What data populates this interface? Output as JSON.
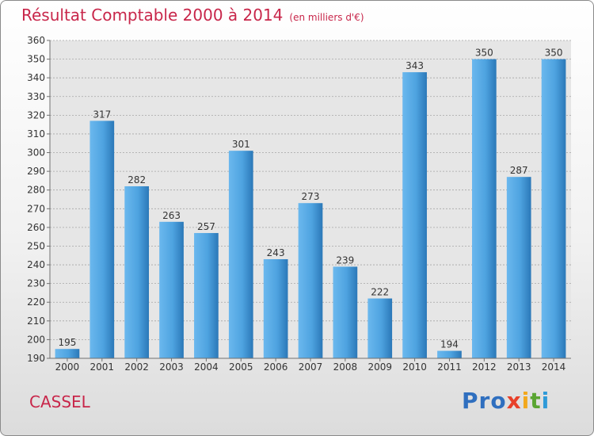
{
  "header": {
    "title": "Résultat Comptable 2000 à 2014",
    "subtitle": "(en milliers d'€)"
  },
  "footer": {
    "commune": "CASSEL",
    "logo_text": "Proxiti"
  },
  "colors": {
    "title": "#c8264a",
    "bar": "#4ea3e0",
    "bar_light": "#6bb8ee",
    "bar_dark": "#2b78b8",
    "grid": "#a0a0a0",
    "plot_bg": "#e6e6e6",
    "logo": [
      "#2f6fbf",
      "#2f6fbf",
      "#2f6fbf",
      "#e8402a",
      "#f2a81d",
      "#5aa532",
      "#2f9ad8"
    ]
  },
  "chart_data": {
    "type": "bar",
    "title": "Résultat Comptable 2000 à 2014",
    "subtitle": "(en milliers d'€)",
    "categories": [
      "2000",
      "2001",
      "2002",
      "2003",
      "2004",
      "2005",
      "2006",
      "2007",
      "2008",
      "2009",
      "2010",
      "2011",
      "2012",
      "2013",
      "2014"
    ],
    "values": [
      195,
      317,
      282,
      263,
      257,
      301,
      243,
      273,
      239,
      222,
      343,
      194,
      350,
      287,
      350
    ],
    "ylim": [
      190,
      360
    ],
    "ytick_step": 10,
    "grid": true,
    "data_labels": true,
    "xlabel": "",
    "ylabel": ""
  }
}
